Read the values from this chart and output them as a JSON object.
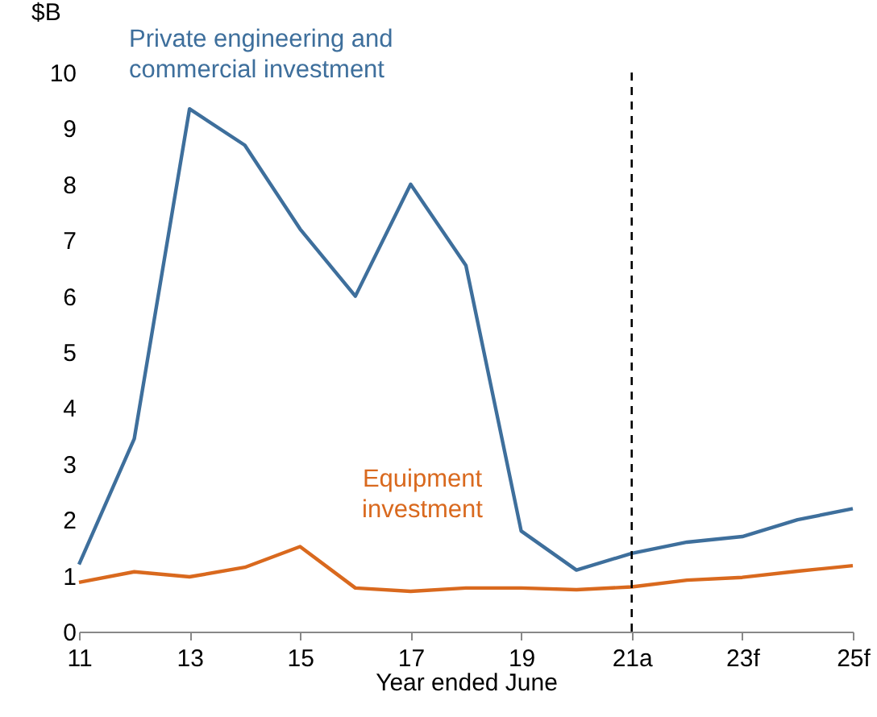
{
  "chart_data": {
    "type": "line",
    "ylabel": "$B",
    "xlabel": "Year ended June",
    "categories": [
      "11",
      null,
      "13",
      null,
      "15",
      null,
      "17",
      null,
      "19",
      null,
      "21a",
      null,
      "23f",
      null,
      "25f"
    ],
    "series": [
      {
        "name": "Private engineering and commercial investment",
        "color": "#3e6f9c",
        "values": [
          1.2,
          3.45,
          9.35,
          8.7,
          7.2,
          6.0,
          8.0,
          6.55,
          1.8,
          1.1,
          1.4,
          1.6,
          1.7,
          2.0,
          2.2
        ]
      },
      {
        "name": "Equipment investment",
        "color": "#d9691e",
        "values": [
          0.88,
          1.07,
          0.98,
          1.15,
          1.52,
          0.78,
          0.72,
          0.78,
          0.78,
          0.75,
          0.8,
          0.92,
          0.97,
          1.08,
          1.18
        ]
      }
    ],
    "ylim": [
      0,
      10
    ],
    "yticks": [
      0,
      1,
      2,
      3,
      4,
      5,
      6,
      7,
      8,
      9,
      10
    ],
    "ref_lines": [
      {
        "axis": "x",
        "value": "21a",
        "color": "#000000",
        "line_style": "dashed"
      }
    ],
    "grid": false,
    "legend": false,
    "marker": "none",
    "line_style": "solid"
  }
}
